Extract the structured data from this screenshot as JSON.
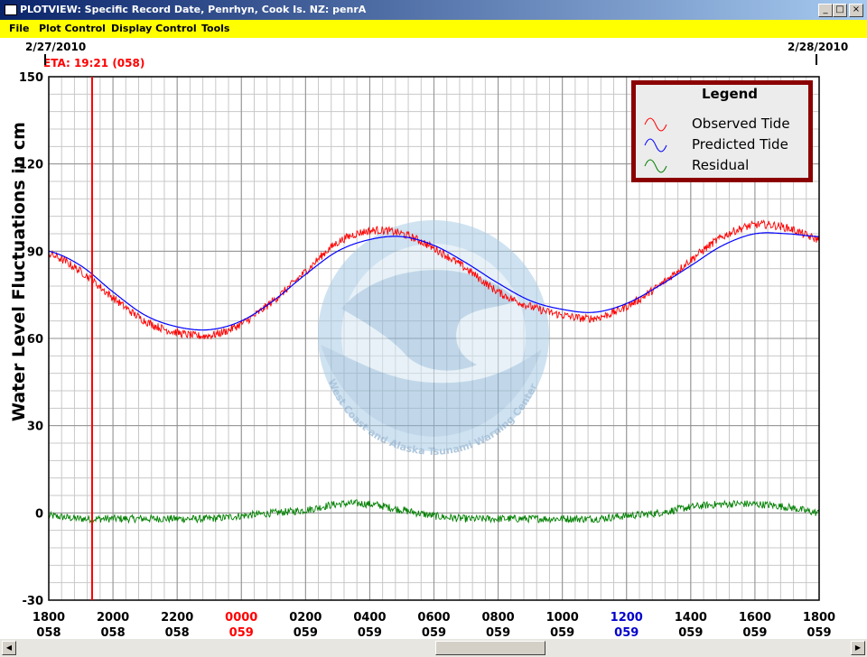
{
  "window": {
    "title": "PLOTVIEW: Specific Record Date, Penrhyn, Cook Is. NZ: penrA",
    "minimize": "_",
    "maximize": "□",
    "close": "×"
  },
  "menu": [
    "File",
    "Plot Control",
    "Display Control",
    "Tools"
  ],
  "header": {
    "start_date": "2/27/2010",
    "end_date": "2/28/2010",
    "eta": "ETA: 19:21 (058)"
  },
  "legend": {
    "title": "Legend",
    "items": [
      "Observed Tide",
      "Predicted Tide",
      "Residual"
    ]
  },
  "watermark": {
    "ring_text": "West Coast and Alaska Tsunami Warning Center"
  },
  "colors": {
    "observed": "#ff0000",
    "predicted": "#0000ff",
    "residual": "#008000",
    "eta_line": "#ff0000",
    "highlight_midnight": "#ff0000",
    "highlight_noon": "#0000cc",
    "legend_border": "#8b0000"
  },
  "chart_data": {
    "type": "line",
    "title": "",
    "ylabel": "Water Level Fluctuations in cm",
    "xlabel": "",
    "ylim": [
      -30,
      150
    ],
    "yticks": [
      -30,
      0,
      30,
      60,
      90,
      120,
      150
    ],
    "xlim_hours": [
      0,
      24
    ],
    "xticks": [
      {
        "time": "1800",
        "day": "058"
      },
      {
        "time": "2000",
        "day": "058"
      },
      {
        "time": "2200",
        "day": "058"
      },
      {
        "time": "0000",
        "day": "059",
        "color": "#ff0000"
      },
      {
        "time": "0200",
        "day": "059"
      },
      {
        "time": "0400",
        "day": "059"
      },
      {
        "time": "0600",
        "day": "059"
      },
      {
        "time": "0800",
        "day": "059"
      },
      {
        "time": "1000",
        "day": "059"
      },
      {
        "time": "1200",
        "day": "059",
        "color": "#0000cc"
      },
      {
        "time": "1400",
        "day": "059"
      },
      {
        "time": "1600",
        "day": "059"
      },
      {
        "time": "1800",
        "day": "059"
      }
    ],
    "eta_hours": 1.35,
    "grid": true,
    "legend_position": "top-right",
    "series": [
      {
        "name": "Observed Tide",
        "x": [
          0,
          1,
          2,
          3,
          4,
          5,
          6,
          7,
          8,
          9,
          10,
          11,
          12,
          13,
          14,
          15,
          16,
          17,
          18,
          19,
          20,
          21,
          22,
          23,
          24
        ],
        "values": [
          89,
          83,
          74,
          66,
          62,
          61,
          65,
          73,
          83,
          93,
          97,
          96,
          91,
          84,
          76,
          71,
          68,
          67,
          71,
          78,
          87,
          95,
          99,
          98,
          94
        ]
      },
      {
        "name": "Predicted Tide",
        "x": [
          0,
          1,
          2,
          3,
          4,
          5,
          6,
          7,
          8,
          9,
          10,
          11,
          12,
          13,
          14,
          15,
          16,
          17,
          18,
          19,
          20,
          21,
          22,
          23,
          24
        ],
        "values": [
          90,
          85,
          76,
          68,
          64,
          63,
          66,
          73,
          82,
          90,
          94,
          95,
          92,
          86,
          79,
          73,
          70,
          69,
          72,
          78,
          85,
          92,
          96,
          96,
          95
        ]
      },
      {
        "name": "Residual",
        "x": [
          0,
          1,
          2,
          3,
          4,
          5,
          6,
          7,
          8,
          9,
          10,
          11,
          12,
          13,
          14,
          15,
          16,
          17,
          18,
          19,
          20,
          21,
          22,
          23,
          24
        ],
        "values": [
          -1,
          -2,
          -2,
          -2,
          -2,
          -2,
          -1,
          0,
          1,
          3,
          3,
          1,
          -1,
          -2,
          -2,
          -2,
          -2,
          -2,
          -1,
          0,
          2,
          3,
          3,
          2,
          0
        ]
      }
    ]
  }
}
